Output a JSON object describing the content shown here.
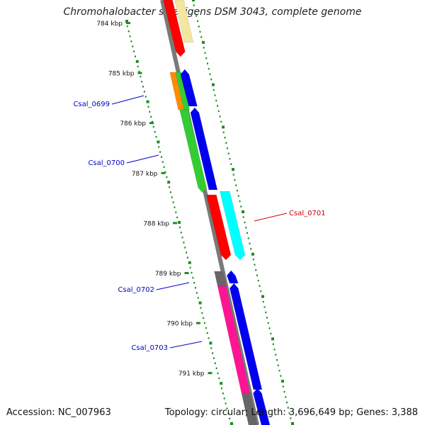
{
  "title": "Chromohalobacter salexigens DSM 3043, complete genome",
  "footer": {
    "accession": "Accession: NC_007963",
    "summary": "Topology: circular; Length: 3,696,649 bp; Genes: 3,388"
  },
  "colors": {
    "backbone": "#7a7a7a",
    "tick": "#1e8c1e",
    "label_forward": "#0000cc",
    "label_reverse": "#cc0000"
  },
  "ruler": [
    {
      "label": "784 kbp",
      "position_kbp": 784
    },
    {
      "label": "785 kbp",
      "position_kbp": 785
    },
    {
      "label": "786 kbp",
      "position_kbp": 786
    },
    {
      "label": "787 kbp",
      "position_kbp": 787
    },
    {
      "label": "788 kbp",
      "position_kbp": 788
    },
    {
      "label": "789 kbp",
      "position_kbp": 789
    },
    {
      "label": "790 kbp",
      "position_kbp": 790
    },
    {
      "label": "791 kbp",
      "position_kbp": 791
    }
  ],
  "gene_labels": [
    {
      "name": "Csal_0699",
      "strand": "forward"
    },
    {
      "name": "Csal_0700",
      "strand": "forward"
    },
    {
      "name": "Csal_0701",
      "strand": "reverse"
    },
    {
      "name": "Csal_0702",
      "strand": "forward"
    },
    {
      "name": "Csal_0703",
      "strand": "forward"
    }
  ],
  "feature_colors": {
    "cds": "#0000ee",
    "gene_forward": "#33cc33",
    "gene_reverse": "#ff0000",
    "cds_reverse": "#00ffff",
    "misc": "#ff8c00",
    "pseudo": "#666666",
    "rna": "#ff1493",
    "other": "#f2e6a0"
  }
}
